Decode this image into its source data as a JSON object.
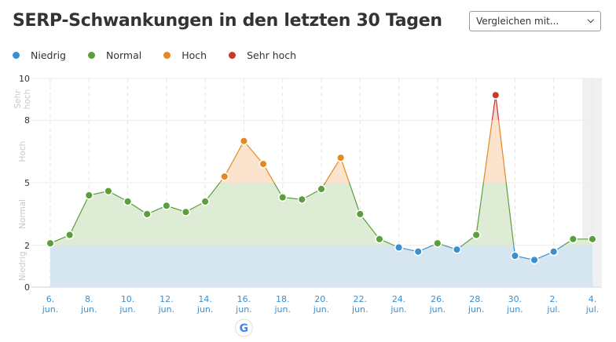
{
  "title": "SERP-Schwankungen in den letzten 30 Tagen",
  "compare_select": {
    "value": "Vergleichen mit...",
    "icon": "chevron-down-icon"
  },
  "legend": [
    {
      "label": "Niedrig",
      "color": "#3a8fcf"
    },
    {
      "label": "Normal",
      "color": "#5b9e3a"
    },
    {
      "label": "Hoch",
      "color": "#e38a22"
    },
    {
      "label": "Sehr hoch",
      "color": "#c9382c"
    }
  ],
  "chart_data": {
    "type": "area",
    "title": "SERP-Schwankungen in den letzten 30 Tagen",
    "x": [
      "6. jun.",
      "7. jun.",
      "8. jun.",
      "9. jun.",
      "10. jun.",
      "11. jun.",
      "12. jun.",
      "13. jun.",
      "14. jun.",
      "15. jun.",
      "16. jun.",
      "17. jun.",
      "18. jun.",
      "19. jun.",
      "20. jun.",
      "21. jun.",
      "22. jun.",
      "23. jun.",
      "24. jun.",
      "25. jun.",
      "26. jun.",
      "27. jun.",
      "28. jun.",
      "29. jun.",
      "30. jun.",
      "1. jul.",
      "2. jul.",
      "3. jul.",
      "4. jul."
    ],
    "values": [
      2.1,
      2.5,
      4.4,
      4.6,
      4.1,
      3.5,
      3.9,
      3.6,
      4.1,
      5.3,
      7.0,
      5.9,
      4.3,
      4.2,
      4.7,
      6.2,
      3.5,
      2.3,
      1.9,
      1.7,
      2.1,
      1.8,
      2.5,
      9.2,
      1.5,
      1.3,
      1.7,
      2.3,
      2.3
    ],
    "tick_labels": [
      [
        "6.",
        "jun."
      ],
      [
        "8.",
        "jun."
      ],
      [
        "10.",
        "jun."
      ],
      [
        "12.",
        "jun."
      ],
      [
        "14.",
        "jun."
      ],
      [
        "16.",
        "jun."
      ],
      [
        "18.",
        "jun."
      ],
      [
        "20.",
        "jun."
      ],
      [
        "22.",
        "jun."
      ],
      [
        "24.",
        "jun."
      ],
      [
        "26.",
        "jun."
      ],
      [
        "28.",
        "jun."
      ],
      [
        "30.",
        "jun."
      ],
      [
        "2.",
        "jul."
      ],
      [
        "4.",
        "jul."
      ]
    ],
    "yticks": [
      0,
      2,
      5,
      8,
      10
    ],
    "ylim": [
      0,
      10
    ],
    "bands": [
      {
        "label": "Niedrig",
        "from": 0,
        "to": 2,
        "color": "#3a8fcf",
        "fill": "#d6e6f1"
      },
      {
        "label": "Normal",
        "from": 2,
        "to": 5,
        "color": "#5b9e3a",
        "fill": "#deecd6"
      },
      {
        "label": "Hoch",
        "from": 5,
        "to": 8,
        "color": "#e38a22",
        "fill": "#fbe3cd"
      },
      {
        "label": "Sehr hoch",
        "from": 8,
        "to": 10,
        "color": "#c9382c",
        "fill": "#f6d5d2"
      }
    ],
    "band_labels": [
      "Niedrig",
      "Normal",
      "Hoch",
      "Sehr hoch"
    ],
    "grid": true,
    "legend_position": "top-left",
    "marker_icon": "google-icon",
    "marker_date": "16. jun."
  }
}
